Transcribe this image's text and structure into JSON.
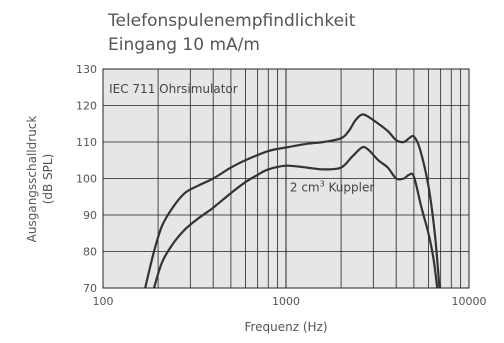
{
  "chart_data": {
    "type": "line",
    "title": "Telefonspulenempfindlichkeit",
    "subtitle": "Eingang 10 mA/m",
    "xlabel": "Frequenz (Hz)",
    "ylabel_line1": "Ausgangsschalldruck",
    "ylabel_line2": "(dB SPL)",
    "x_scale": "log",
    "xlim": [
      100,
      10000
    ],
    "ylim": [
      70,
      130
    ],
    "x_ticks": [
      100,
      1000,
      10000
    ],
    "x_tick_labels": [
      "100",
      "1000",
      "10000"
    ],
    "y_ticks": [
      70,
      80,
      90,
      100,
      110,
      120,
      130
    ],
    "y_tick_labels": [
      "70",
      "80",
      "90",
      "100",
      "110",
      "120",
      "130"
    ],
    "grid": true,
    "background_color": "#e6e6e6",
    "grid_color": "#222222",
    "series": [
      {
        "name": "IEC 711 Ohrsimulator",
        "color": "#333333",
        "x": [
          170,
          190,
          210,
          240,
          280,
          330,
          400,
          500,
          600,
          800,
          1000,
          1300,
          1600,
          2000,
          2200,
          2400,
          2600,
          2800,
          3200,
          3600,
          4000,
          4400,
          4700,
          5000,
          5400,
          6000,
          6500,
          6900
        ],
        "y": [
          70,
          80,
          87,
          92,
          96,
          98,
          100,
          103,
          105,
          107.5,
          108.5,
          109.5,
          110,
          111,
          113,
          116,
          117.5,
          117,
          115,
          113,
          110.5,
          110,
          111,
          111.5,
          108,
          98,
          85,
          70
        ]
      },
      {
        "name": "2 cm³ Kuppler",
        "color": "#333333",
        "x": [
          190,
          210,
          240,
          280,
          330,
          400,
          500,
          600,
          700,
          800,
          1000,
          1300,
          1600,
          2000,
          2300,
          2600,
          2800,
          3200,
          3600,
          4000,
          4400,
          4700,
          5000,
          5500,
          6000,
          6400,
          6700
        ],
        "y": [
          70,
          77,
          82,
          86,
          89,
          92,
          96,
          99,
          101,
          102.5,
          103.5,
          103,
          102.5,
          103,
          106,
          108.5,
          108,
          105,
          103,
          100,
          100,
          101,
          100.5,
          92,
          85,
          78,
          70
        ]
      }
    ],
    "annotations": [
      {
        "text": "IEC 711 Ohrsimulator",
        "x": 108,
        "y": 124.5
      },
      {
        "text_main": "2 cm",
        "text_sup": "3",
        "text_tail": " Kuppler",
        "x": 1050,
        "y": 97.5
      }
    ]
  }
}
